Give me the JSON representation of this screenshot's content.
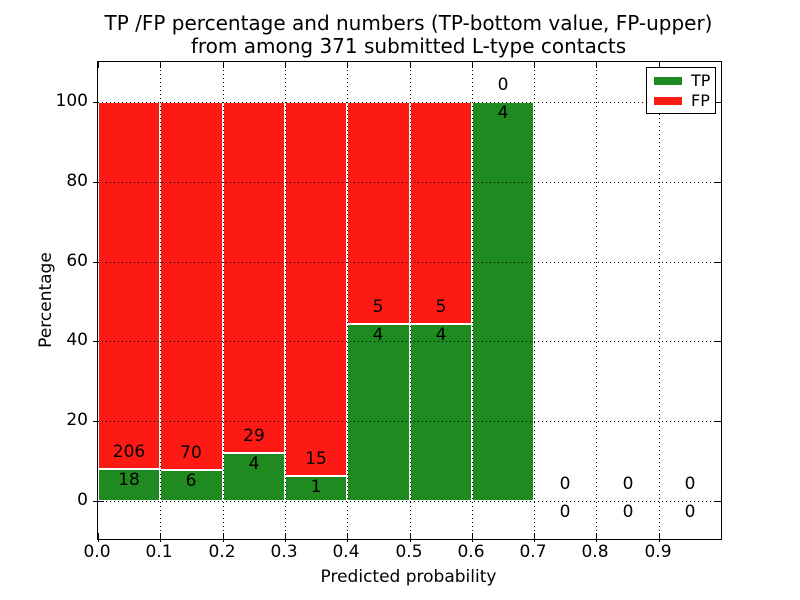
{
  "chart_data": {
    "type": "bar",
    "stacked": true,
    "title": "TP /FP percentage and numbers (TP-bottom value, FP-upper) from among 371 submitted L-type contacts",
    "title_lines": [
      "TP /FP percentage and numbers (TP-bottom value, FP-upper)",
      "from among 371 submitted L-type contacts"
    ],
    "xlabel": "Predicted probability",
    "ylabel": "Percentage",
    "xlim": [
      0.0,
      1.0
    ],
    "ylim": [
      -10,
      110
    ],
    "x_ticks": [
      "0.0",
      "0.1",
      "0.2",
      "0.3",
      "0.4",
      "0.5",
      "0.6",
      "0.7",
      "0.8",
      "0.9"
    ],
    "y_ticks": [
      "0",
      "20",
      "40",
      "60",
      "80",
      "100"
    ],
    "grid": true,
    "grid_style": "dotted",
    "total_contacts": 371,
    "colors": {
      "tp": "#1f8a1f",
      "fp": "#fd1a15",
      "bar_edge": "#ffffff",
      "text": "#000000"
    },
    "legend": {
      "position": "upper right",
      "entries": [
        {
          "label": "TP",
          "color": "#1f8a1f"
        },
        {
          "label": "FP",
          "color": "#fd1a15"
        }
      ]
    },
    "bins": [
      {
        "range": [
          0.0,
          0.1
        ],
        "tp_count": 18,
        "fp_count": 206,
        "tp_pct": 8.04,
        "fp_pct": 91.96
      },
      {
        "range": [
          0.1,
          0.2
        ],
        "tp_count": 6,
        "fp_count": 70,
        "tp_pct": 7.89,
        "fp_pct": 92.11
      },
      {
        "range": [
          0.2,
          0.3
        ],
        "tp_count": 4,
        "fp_count": 29,
        "tp_pct": 12.12,
        "fp_pct": 87.88
      },
      {
        "range": [
          0.3,
          0.4
        ],
        "tp_count": 1,
        "fp_count": 15,
        "tp_pct": 6.25,
        "fp_pct": 93.75
      },
      {
        "range": [
          0.4,
          0.5
        ],
        "tp_count": 4,
        "fp_count": 5,
        "tp_pct": 44.44,
        "fp_pct": 55.56
      },
      {
        "range": [
          0.5,
          0.6
        ],
        "tp_count": 4,
        "fp_count": 5,
        "tp_pct": 44.44,
        "fp_pct": 55.56
      },
      {
        "range": [
          0.6,
          0.7
        ],
        "tp_count": 4,
        "fp_count": 0,
        "tp_pct": 100.0,
        "fp_pct": 0.0
      },
      {
        "range": [
          0.7,
          0.8
        ],
        "tp_count": 0,
        "fp_count": 0,
        "tp_pct": null,
        "fp_pct": null
      },
      {
        "range": [
          0.8,
          0.9
        ],
        "tp_count": 0,
        "fp_count": 0,
        "tp_pct": null,
        "fp_pct": null
      },
      {
        "range": [
          0.9,
          1.0
        ],
        "tp_count": 0,
        "fp_count": 0,
        "tp_pct": null,
        "fp_pct": null
      }
    ]
  }
}
